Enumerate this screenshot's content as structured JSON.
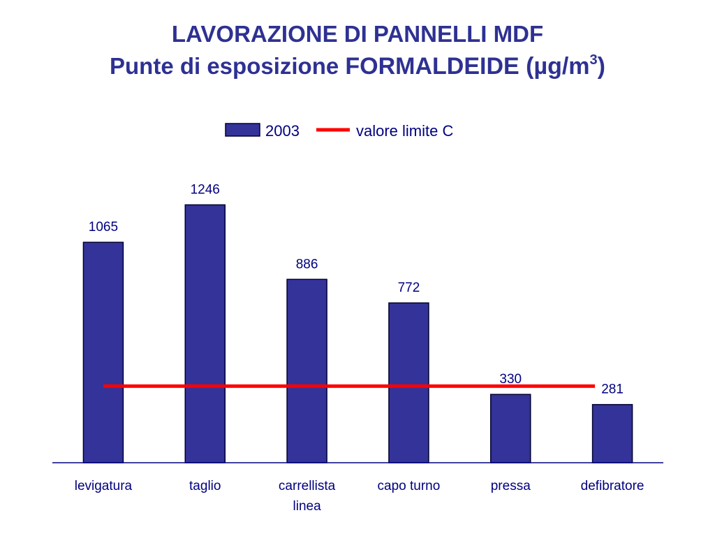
{
  "title": {
    "line1": "LAVORAZIONE DI PANNELLI MDF",
    "line2_prefix": "Punte di esposizione ",
    "line2_emphasis": "FORMALDEIDE (µg/m",
    "line2_sup": "3",
    "line2_suffix": ")"
  },
  "chart_data": {
    "type": "bar",
    "categories": [
      "levigatura",
      "taglio",
      "carrellista linea",
      "capo turno",
      "pressa",
      "defibratore"
    ],
    "series": [
      {
        "name": "2003",
        "values": [
          1065,
          1246,
          886,
          772,
          330,
          281
        ],
        "color": "#333399"
      }
    ],
    "reference_line": {
      "name": "valore limite C",
      "value": 370,
      "color": "#ff0000"
    },
    "ylim": [
      0,
      1450
    ],
    "grid": false,
    "legend": "top-center",
    "data_labels": true
  }
}
